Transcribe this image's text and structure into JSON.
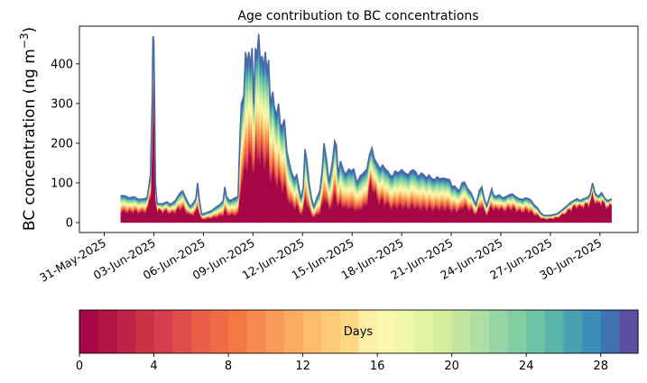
{
  "chart_data": {
    "type": "area",
    "title": "Age contribution to BC concentrations",
    "ylabel": "BC concentration (ng m$^{-3}$)",
    "ylabel_text": "BC concentration (ng m",
    "ylabel_sup": "−3",
    "ylabel_close": ")",
    "ylim": [
      -25,
      495
    ],
    "yticks": [
      0,
      100,
      200,
      300,
      400
    ],
    "xlim_days": [
      -1.5,
      32.3
    ],
    "x_ticks": [
      {
        "day": 0,
        "label": "31-May-2025"
      },
      {
        "day": 3,
        "label": "03-Jun-2025"
      },
      {
        "day": 6,
        "label": "06-Jun-2025"
      },
      {
        "day": 9,
        "label": "09-Jun-2025"
      },
      {
        "day": 12,
        "label": "12-Jun-2025"
      },
      {
        "day": 15,
        "label": "15-Jun-2025"
      },
      {
        "day": 18,
        "label": "18-Jun-2025"
      },
      {
        "day": 21,
        "label": "21-Jun-2025"
      },
      {
        "day": 24,
        "label": "24-Jun-2025"
      },
      {
        "day": 27,
        "label": "27-Jun-2025"
      },
      {
        "day": 30,
        "label": "30-Jun-2025"
      }
    ],
    "total_line_color": "#4a6aa6",
    "total": [
      [
        1.0,
        68
      ],
      [
        1.3,
        67
      ],
      [
        1.5,
        62
      ],
      [
        1.8,
        65
      ],
      [
        2.1,
        58
      ],
      [
        2.4,
        60
      ],
      [
        2.6,
        62
      ],
      [
        2.8,
        120
      ],
      [
        2.9,
        300
      ],
      [
        2.95,
        470
      ],
      [
        3.0,
        460
      ],
      [
        3.05,
        300
      ],
      [
        3.1,
        100
      ],
      [
        3.2,
        48
      ],
      [
        3.5,
        47
      ],
      [
        3.8,
        52
      ],
      [
        4.0,
        45
      ],
      [
        4.3,
        55
      ],
      [
        4.6,
        75
      ],
      [
        4.75,
        80
      ],
      [
        4.9,
        65
      ],
      [
        5.2,
        40
      ],
      [
        5.4,
        50
      ],
      [
        5.55,
        60
      ],
      [
        5.65,
        100
      ],
      [
        5.75,
        60
      ],
      [
        5.9,
        20
      ],
      [
        6.2,
        25
      ],
      [
        6.5,
        30
      ],
      [
        6.8,
        40
      ],
      [
        7.0,
        45
      ],
      [
        7.2,
        55
      ],
      [
        7.3,
        90
      ],
      [
        7.4,
        65
      ],
      [
        7.6,
        55
      ],
      [
        7.9,
        62
      ],
      [
        8.1,
        65
      ],
      [
        8.2,
        200
      ],
      [
        8.3,
        300
      ],
      [
        8.45,
        320
      ],
      [
        8.55,
        430
      ],
      [
        8.65,
        400
      ],
      [
        8.75,
        430
      ],
      [
        8.85,
        395
      ],
      [
        8.95,
        440
      ],
      [
        9.05,
        300
      ],
      [
        9.15,
        440
      ],
      [
        9.25,
        420
      ],
      [
        9.35,
        475
      ],
      [
        9.45,
        400
      ],
      [
        9.55,
        420
      ],
      [
        9.65,
        390
      ],
      [
        9.75,
        430
      ],
      [
        9.85,
        380
      ],
      [
        9.95,
        410
      ],
      [
        10.05,
        300
      ],
      [
        10.2,
        330
      ],
      [
        10.3,
        290
      ],
      [
        10.45,
        270
      ],
      [
        10.55,
        300
      ],
      [
        10.65,
        250
      ],
      [
        10.75,
        240
      ],
      [
        10.9,
        260
      ],
      [
        11.05,
        180
      ],
      [
        11.2,
        150
      ],
      [
        11.35,
        125
      ],
      [
        11.5,
        110
      ],
      [
        11.65,
        120
      ],
      [
        11.8,
        85
      ],
      [
        11.9,
        60
      ],
      [
        12.05,
        90
      ],
      [
        12.15,
        185
      ],
      [
        12.25,
        160
      ],
      [
        12.4,
        100
      ],
      [
        12.55,
        60
      ],
      [
        12.7,
        40
      ],
      [
        12.85,
        60
      ],
      [
        13.05,
        80
      ],
      [
        13.2,
        135
      ],
      [
        13.3,
        200
      ],
      [
        13.45,
        160
      ],
      [
        13.6,
        100
      ],
      [
        13.8,
        150
      ],
      [
        13.95,
        205
      ],
      [
        14.05,
        195
      ],
      [
        14.15,
        120
      ],
      [
        14.3,
        155
      ],
      [
        14.45,
        135
      ],
      [
        14.6,
        120
      ],
      [
        14.8,
        135
      ],
      [
        14.95,
        130
      ],
      [
        15.1,
        135
      ],
      [
        15.3,
        100
      ],
      [
        15.5,
        118
      ],
      [
        15.7,
        125
      ],
      [
        15.9,
        135
      ],
      [
        16.05,
        170
      ],
      [
        16.2,
        188
      ],
      [
        16.35,
        160
      ],
      [
        16.5,
        150
      ],
      [
        16.7,
        135
      ],
      [
        16.85,
        145
      ],
      [
        17.0,
        135
      ],
      [
        17.15,
        130
      ],
      [
        17.3,
        120
      ],
      [
        17.45,
        115
      ],
      [
        17.6,
        130
      ],
      [
        17.8,
        125
      ],
      [
        18.0,
        133
      ],
      [
        18.2,
        125
      ],
      [
        18.4,
        120
      ],
      [
        18.55,
        130
      ],
      [
        18.7,
        133
      ],
      [
        18.85,
        128
      ],
      [
        19.0,
        115
      ],
      [
        19.2,
        125
      ],
      [
        19.35,
        120
      ],
      [
        19.5,
        112
      ],
      [
        19.65,
        120
      ],
      [
        19.8,
        112
      ],
      [
        20.0,
        108
      ],
      [
        20.15,
        115
      ],
      [
        20.3,
        110
      ],
      [
        20.5,
        112
      ],
      [
        20.7,
        110
      ],
      [
        20.9,
        108
      ],
      [
        21.05,
        90
      ],
      [
        21.2,
        92
      ],
      [
        21.35,
        85
      ],
      [
        21.5,
        80
      ],
      [
        21.65,
        100
      ],
      [
        21.8,
        102
      ],
      [
        22.0,
        85
      ],
      [
        22.2,
        75
      ],
      [
        22.35,
        60
      ],
      [
        22.5,
        45
      ],
      [
        22.7,
        80
      ],
      [
        22.85,
        90
      ],
      [
        23.0,
        60
      ],
      [
        23.15,
        42
      ],
      [
        23.35,
        70
      ],
      [
        23.45,
        85
      ],
      [
        23.55,
        70
      ],
      [
        23.7,
        65
      ],
      [
        23.9,
        70
      ],
      [
        24.1,
        62
      ],
      [
        24.3,
        65
      ],
      [
        24.5,
        70
      ],
      [
        24.7,
        72
      ],
      [
        24.9,
        65
      ],
      [
        25.1,
        60
      ],
      [
        25.3,
        58
      ],
      [
        25.5,
        62
      ],
      [
        25.7,
        60
      ],
      [
        25.85,
        55
      ],
      [
        26.0,
        45
      ],
      [
        26.2,
        38
      ],
      [
        26.4,
        25
      ],
      [
        26.6,
        18
      ],
      [
        26.8,
        18
      ],
      [
        27.0,
        18
      ],
      [
        27.2,
        20
      ],
      [
        27.4,
        22
      ],
      [
        27.6,
        28
      ],
      [
        27.8,
        35
      ],
      [
        28.0,
        42
      ],
      [
        28.2,
        50
      ],
      [
        28.4,
        55
      ],
      [
        28.6,
        60
      ],
      [
        28.8,
        55
      ],
      [
        29.0,
        60
      ],
      [
        29.2,
        62
      ],
      [
        29.4,
        70
      ],
      [
        29.55,
        100
      ],
      [
        29.7,
        75
      ],
      [
        29.9,
        65
      ],
      [
        30.1,
        75
      ],
      [
        30.3,
        60
      ],
      [
        30.5,
        55
      ],
      [
        30.7,
        60
      ]
    ],
    "young_fraction_breakpoints": [
      [
        1.0,
        0.38
      ],
      [
        2.5,
        0.45
      ],
      [
        3.0,
        0.68
      ],
      [
        4.0,
        0.5
      ],
      [
        6.0,
        0.38
      ],
      [
        8.0,
        0.3
      ],
      [
        9.0,
        0.38
      ],
      [
        11.0,
        0.35
      ],
      [
        12.5,
        0.3
      ],
      [
        14.0,
        0.32
      ],
      [
        15.0,
        0.25
      ],
      [
        15.8,
        0.3
      ],
      [
        16.1,
        0.55
      ],
      [
        16.6,
        0.38
      ],
      [
        17.5,
        0.3
      ],
      [
        19.0,
        0.28
      ],
      [
        21.0,
        0.3
      ],
      [
        22.5,
        0.45
      ],
      [
        24.0,
        0.5
      ],
      [
        26.0,
        0.45
      ],
      [
        27.0,
        0.5
      ],
      [
        28.5,
        0.7
      ],
      [
        30.7,
        0.72
      ]
    ],
    "colorbar": {
      "label": "Days",
      "ticks": [
        0,
        4,
        8,
        12,
        16,
        20,
        24,
        28
      ],
      "range": [
        0,
        30
      ],
      "bins": 30,
      "colors": [
        "#a50747",
        "#b11546",
        "#bd2445",
        "#c93243",
        "#d53e4f",
        "#df4e4b",
        "#e85d47",
        "#f06b44",
        "#f47945",
        "#f7894f",
        "#fa9a58",
        "#fcab62",
        "#fdbb6d",
        "#fdca78",
        "#fed883",
        "#fee590",
        "#fdf0a4",
        "#f9f7b0",
        "#eff8aa",
        "#e2f3a1",
        "#d3ed9c",
        "#c2e59f",
        "#aedea2",
        "#98d5a4",
        "#83cda5",
        "#6dc4a5",
        "#5ab5a8",
        "#48a1b1",
        "#3a8eb8",
        "#4172b0",
        "#5e4fa2"
      ]
    }
  }
}
